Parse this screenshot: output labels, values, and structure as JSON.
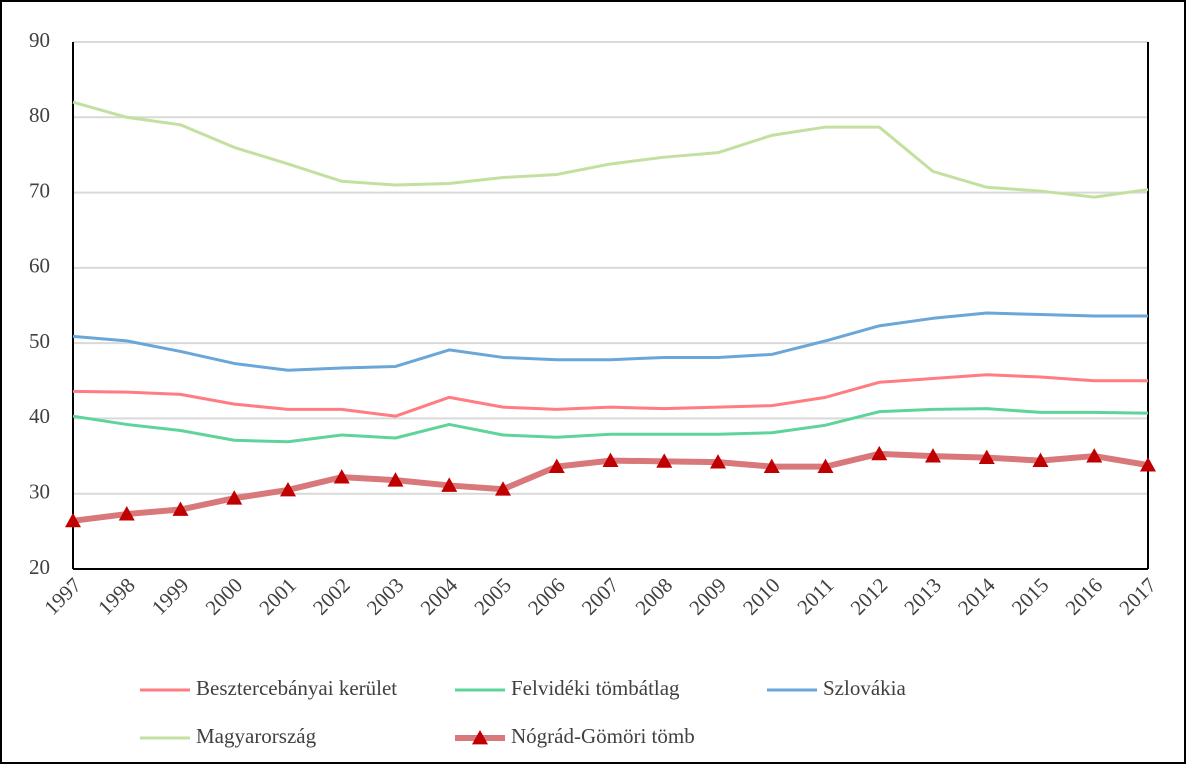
{
  "chart_data": {
    "type": "line",
    "categories": [
      "1997",
      "1998",
      "1999",
      "2000",
      "2001",
      "2002",
      "2003",
      "2004",
      "2005",
      "2006",
      "2007",
      "2008",
      "2009",
      "2010",
      "2011",
      "2012",
      "2013",
      "2014",
      "2015",
      "2016",
      "2017"
    ],
    "series": [
      {
        "name": "Besztercebányai kerület",
        "color": "#ff7c80",
        "values": [
          43.6,
          43.5,
          43.2,
          41.9,
          41.2,
          41.2,
          40.3,
          42.8,
          41.5,
          41.2,
          41.5,
          41.3,
          41.5,
          41.7,
          42.8,
          44.8,
          45.3,
          45.8,
          45.5,
          45,
          45
        ]
      },
      {
        "name": "Felvidéki tömbátlag",
        "color": "#5ed49b",
        "values": [
          40.3,
          39.2,
          38.4,
          37.1,
          36.9,
          37.8,
          37.4,
          39.2,
          37.8,
          37.5,
          37.9,
          37.9,
          37.9,
          38.1,
          39.1,
          40.9,
          41.2,
          41.3,
          40.8,
          40.8,
          40.7
        ]
      },
      {
        "name": "Szlovákia",
        "color": "#6aa6d8",
        "values": [
          50.9,
          50.3,
          48.9,
          47.3,
          46.4,
          46.7,
          46.9,
          49.1,
          48.1,
          47.8,
          47.8,
          48.1,
          48.1,
          48.5,
          50.3,
          52.3,
          53.3,
          54,
          53.8,
          53.6,
          53.6
        ]
      },
      {
        "name": "Magyarország",
        "color": "#c3e0a0",
        "values": [
          82,
          80,
          79,
          76,
          73.8,
          71.5,
          71,
          71.2,
          72,
          72.4,
          73.8,
          74.7,
          75.3,
          77.6,
          78.7,
          78.7,
          72.8,
          70.7,
          70.2,
          69.4,
          70.4
        ]
      },
      {
        "name": "Nógrád-Gömöri tömb",
        "color": "#d9787a",
        "marker_color": "#c00000",
        "values": [
          26.4,
          27.3,
          27.9,
          29.4,
          30.5,
          32.2,
          31.8,
          31.1,
          30.6,
          33.6,
          34.4,
          34.3,
          34.2,
          33.6,
          33.6,
          35.3,
          35,
          34.8,
          34.4,
          35,
          33.8
        ]
      }
    ],
    "ylim": [
      20,
      90
    ],
    "yticks": [
      20,
      30,
      40,
      50,
      60,
      70,
      80,
      90
    ],
    "grid": true,
    "legend": "bottom"
  }
}
